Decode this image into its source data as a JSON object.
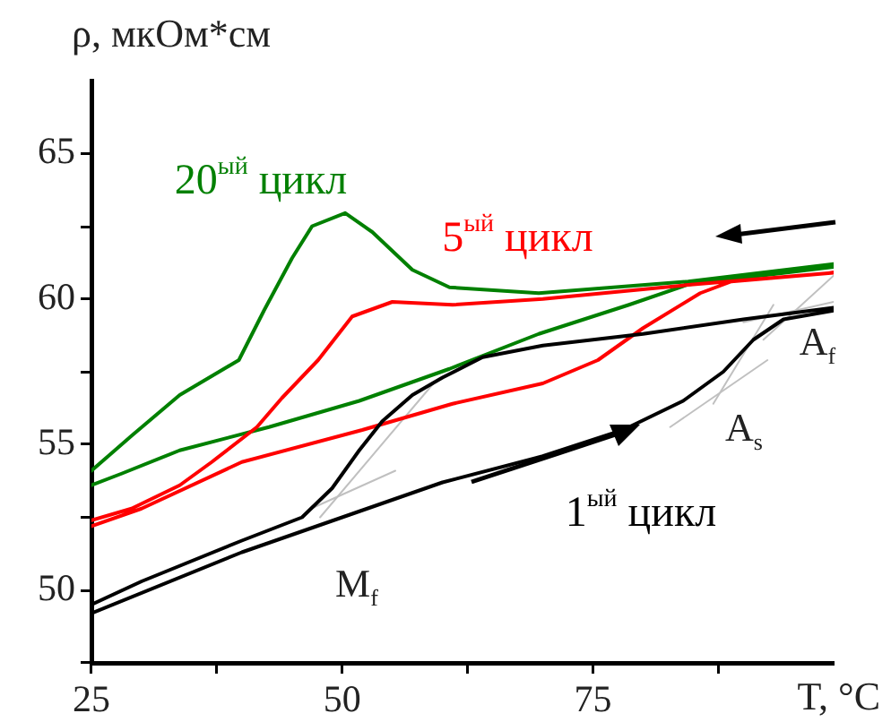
{
  "chart_data": {
    "type": "line",
    "xlabel": "T, °C",
    "ylabel": "ρ, мкОм*см",
    "xlim": [
      25,
      99
    ],
    "ylim": [
      47.5,
      67.5
    ],
    "xticks": [
      25,
      {
        "value": 37.5,
        "label": null
      },
      50,
      {
        "value": 62.5,
        "label": null
      },
      75,
      {
        "value": 87.5,
        "label": null
      }
    ],
    "yticks": [
      {
        "value": 47.5,
        "label": null
      },
      50,
      {
        "value": 52.5,
        "label": null
      },
      55,
      {
        "value": 57.5,
        "label": null
      },
      60,
      {
        "value": 62.5,
        "label": null
      },
      65
    ],
    "grid": false,
    "marker": "none",
    "line_style": "solid",
    "series": [
      {
        "name": "1$^{ый}$ цикл",
        "color": "#000000",
        "x": [
          25,
          40,
          50,
          60,
          70,
          78,
          84,
          88,
          91,
          94,
          99,
          99,
          90,
          80,
          70,
          64,
          60,
          57,
          54,
          51.7,
          49,
          46,
          40,
          30,
          25
        ],
        "values": [
          49.2,
          51.3,
          52.5,
          53.7,
          54.6,
          55.5,
          56.5,
          57.5,
          58.6,
          59.3,
          59.6,
          59.7,
          59.3,
          58.8,
          58.4,
          58,
          57.3,
          56.7,
          55.8,
          54.8,
          53.5,
          52.5,
          51.7,
          50.3,
          49.5
        ]
      },
      {
        "name": "5$^{ый}$ цикл",
        "color": "#ff0000",
        "x": [
          25,
          30,
          40,
          52,
          61,
          70,
          75.5,
          80,
          85.7,
          88.8,
          99,
          99,
          85,
          70,
          61,
          55,
          51,
          47.6,
          44,
          41.5,
          37,
          33.8,
          29,
          25
        ],
        "values": [
          52.2,
          52.8,
          54.4,
          55.5,
          56.4,
          57.1,
          57.9,
          59,
          60.2,
          60.6,
          60.9,
          60.9,
          60.5,
          60,
          59.8,
          59.9,
          59.4,
          57.9,
          56.6,
          55.6,
          54.4,
          53.6,
          52.8,
          52.4
        ]
      },
      {
        "name": "20$^{ый}$ цикл",
        "color": "#008000",
        "x": [
          25,
          28,
          33.8,
          42.7,
          51.7,
          60.7,
          69.6,
          78.6,
          84.5,
          99,
          99,
          84.5,
          69.6,
          60.7,
          57,
          53,
          50.3,
          47,
          45,
          42.2,
          39.7,
          33.8,
          29,
          25
        ],
        "values": [
          53.6,
          54,
          54.8,
          55.6,
          56.5,
          57.6,
          58.8,
          59.8,
          60.5,
          61.1,
          61.2,
          60.6,
          60.2,
          60.4,
          61,
          62.3,
          62.95,
          62.5,
          61.4,
          59.6,
          57.9,
          56.7,
          55.3,
          54.1
        ]
      },
      {
        "color": "#c0c0c0",
        "x": [
          47.8,
          59.1
        ],
        "values": [
          52.5,
          57.1
        ]
      },
      {
        "color": "#c0c0c0",
        "x": [
          46.9,
          55.3
        ],
        "values": [
          52.8,
          54.1
        ]
      },
      {
        "color": "#c0c0c0",
        "x": [
          82.7,
          92.4
        ],
        "values": [
          55.6,
          57.9
        ]
      },
      {
        "color": "#c0c0c0",
        "x": [
          87,
          93
        ],
        "values": [
          56.4,
          59.8
        ]
      },
      {
        "color": "#c0c0c0",
        "x": [
          92,
          99
        ],
        "values": [
          58.6,
          60.8
        ]
      },
      {
        "color": "#c0c0c0",
        "x": [
          90,
          99
        ],
        "values": [
          59.2,
          59.9
        ]
      }
    ],
    "annotations": [
      "M$_{f}$",
      "A$_{s}$",
      "A$_{f}$"
    ]
  }
}
